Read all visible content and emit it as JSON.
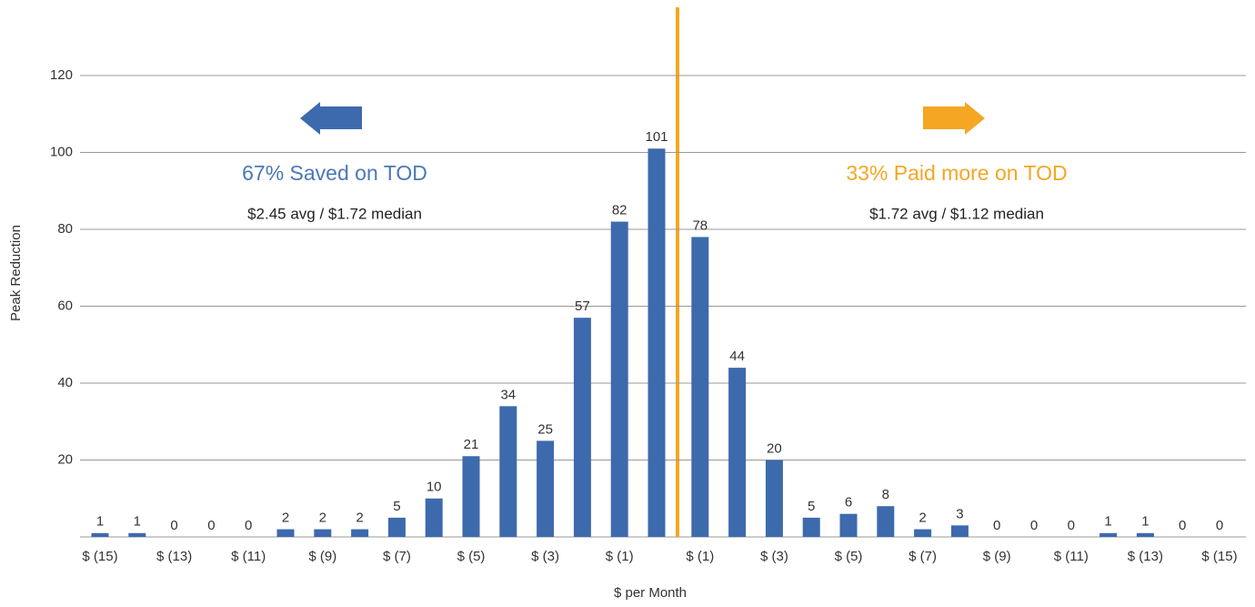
{
  "chart_data": {
    "type": "bar",
    "x_label": "$ per Month",
    "y_label": "Peak Reduction",
    "categories": [
      "$ (15)",
      null,
      "$ (13)",
      null,
      "$ (11)",
      null,
      "$ (9)",
      null,
      "$ (7)",
      null,
      "$ (5)",
      null,
      "$ (3)",
      null,
      "$ (1)",
      null,
      "$ (1)",
      null,
      "$ (3)",
      null,
      "$ (5)",
      null,
      "$ (7)",
      null,
      "$ (9)",
      null,
      "$ (11)",
      null,
      "$ (13)",
      null,
      "$ (15)"
    ],
    "values": [
      1,
      1,
      0,
      0,
      0,
      2,
      2,
      2,
      5,
      10,
      21,
      34,
      25,
      57,
      82,
      101,
      78,
      44,
      20,
      5,
      6,
      8,
      2,
      3,
      0,
      0,
      0,
      1,
      1,
      0,
      0
    ],
    "color": "#3d6aad",
    "ylim": [
      0,
      120
    ],
    "yticks": [
      20,
      40,
      60,
      80,
      100,
      120
    ],
    "grid": true,
    "annotations": {
      "left_title": "67% Saved on TOD",
      "left_detail": "$2.45 avg / $1.72 median",
      "right_title": "33% Paid more on TOD",
      "right_detail": "$1.72 avg / $1.12 median"
    }
  }
}
